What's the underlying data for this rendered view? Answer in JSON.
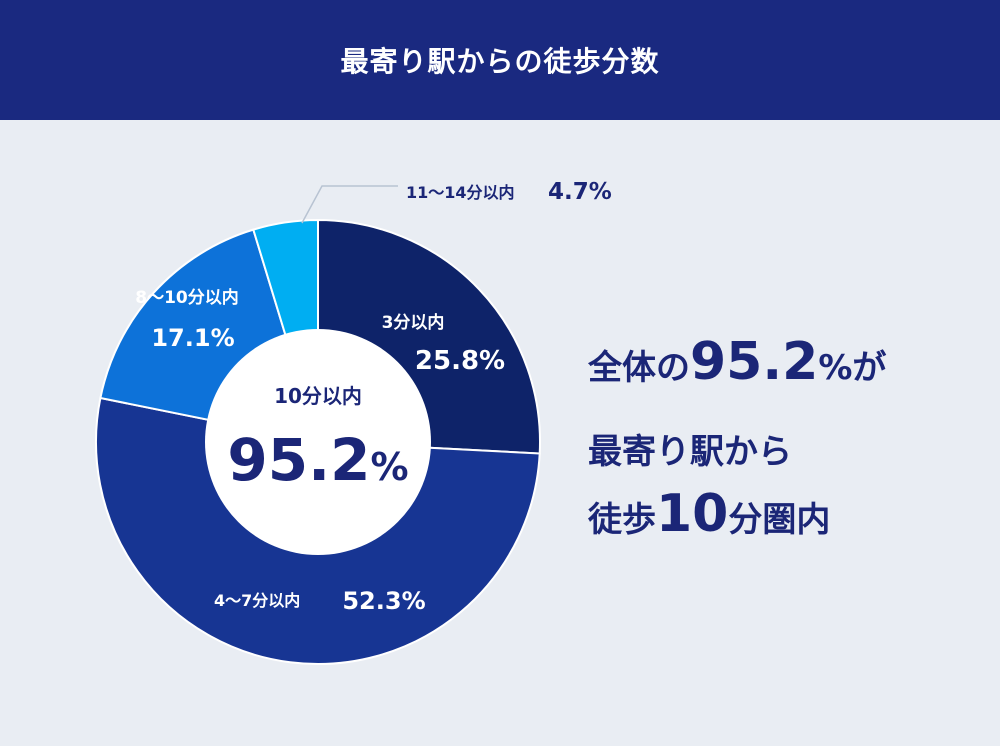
{
  "header": {
    "title": "最寄り駅からの徒歩分数"
  },
  "chart_data": {
    "type": "pie",
    "categories": [
      "3分以内",
      "4〜7分以内",
      "8〜10分以内",
      "11〜14分以内"
    ],
    "values": [
      25.8,
      52.3,
      17.1,
      4.7
    ],
    "unit": "%",
    "colors": [
      "#0e2369",
      "#173593",
      "#0d72d9",
      "#00aef2"
    ],
    "center": {
      "label": "10分以内",
      "value": "95.2",
      "unit": "%"
    }
  },
  "summary": {
    "line1": {
      "pre": "全体の",
      "value": "95.2",
      "unit": "%",
      "post": "が"
    },
    "line2": "最寄り駅から",
    "line3": {
      "pre": "徒歩",
      "value": "10",
      "post": "分圏内"
    }
  }
}
